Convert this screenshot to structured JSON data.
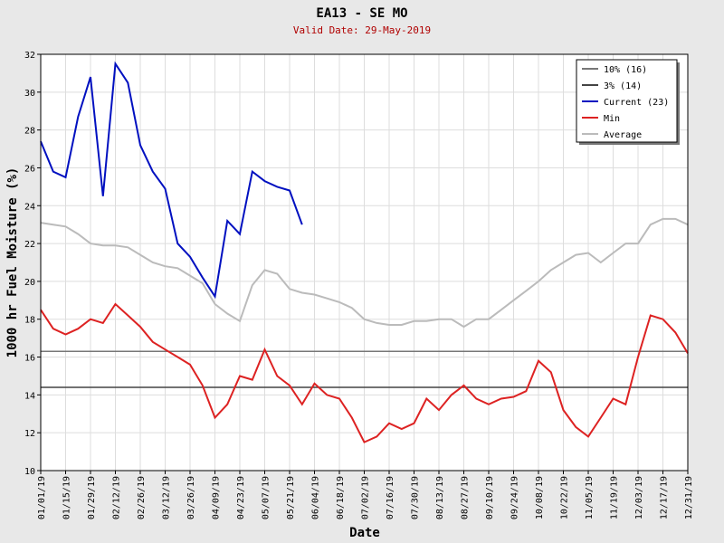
{
  "chart_data": {
    "type": "line",
    "title": "EA13 - SE MO",
    "subtitle": "Valid Date: 29-May-2019",
    "xlabel": "Date",
    "ylabel": "1000 hr Fuel Moisture (%)",
    "x": [
      "01/01/19",
      "01/08/19",
      "01/15/19",
      "01/22/19",
      "01/29/19",
      "02/05/19",
      "02/12/19",
      "02/19/19",
      "02/26/19",
      "03/05/19",
      "03/12/19",
      "03/19/19",
      "03/26/19",
      "04/02/19",
      "04/09/19",
      "04/16/19",
      "04/23/19",
      "04/30/19",
      "05/07/19",
      "05/14/19",
      "05/21/19",
      "05/28/19",
      "06/04/19",
      "06/11/19",
      "06/18/19",
      "06/25/19",
      "07/02/19",
      "07/09/19",
      "07/16/19",
      "07/23/19",
      "07/30/19",
      "08/06/19",
      "08/13/19",
      "08/20/19",
      "08/27/19",
      "09/03/19",
      "09/10/19",
      "09/17/19",
      "09/24/19",
      "10/01/19",
      "10/08/19",
      "10/15/19",
      "10/22/19",
      "10/29/19",
      "11/05/19",
      "11/12/19",
      "11/19/19",
      "11/26/19",
      "12/03/19",
      "12/10/19",
      "12/17/19",
      "12/24/19",
      "12/31/19"
    ],
    "reference_lines": [
      {
        "name": "10% (16)",
        "value": 16.3,
        "color": "#777777"
      },
      {
        "name": "3% (14)",
        "value": 14.4,
        "color": "#444444"
      }
    ],
    "series": [
      {
        "name": "Current (23)",
        "color": "#0010c0",
        "values": [
          27.4,
          25.8,
          25.5,
          28.7,
          30.8,
          24.5,
          31.5,
          30.5,
          27.2,
          25.8,
          24.9,
          22.0,
          21.3,
          20.2,
          19.2,
          23.2,
          22.5,
          25.8,
          25.3,
          25.0,
          24.8,
          23.0,
          null,
          null,
          null,
          null,
          null,
          null,
          null,
          null,
          null,
          null,
          null,
          null,
          null,
          null,
          null,
          null,
          null,
          null,
          null,
          null,
          null,
          null,
          null,
          null,
          null,
          null,
          null,
          null,
          null,
          null,
          null
        ]
      },
      {
        "name": "Min",
        "color": "#dd2222",
        "values": [
          18.5,
          17.5,
          17.2,
          17.5,
          18.0,
          17.8,
          18.8,
          18.2,
          17.6,
          16.8,
          16.4,
          16.0,
          15.6,
          14.5,
          12.8,
          13.5,
          15.0,
          14.8,
          16.4,
          15.0,
          14.5,
          13.5,
          14.6,
          14.0,
          13.8,
          12.8,
          11.5,
          11.8,
          12.5,
          12.2,
          12.5,
          13.8,
          13.2,
          14.0,
          14.5,
          13.8,
          13.5,
          13.8,
          13.9,
          14.2,
          15.8,
          15.2,
          13.2,
          12.3,
          11.8,
          12.8,
          13.8,
          13.5,
          16.0,
          18.2,
          18.0,
          17.3,
          16.2
        ]
      },
      {
        "name": "Average",
        "color": "#bbbbbb",
        "values": [
          23.1,
          23.0,
          22.9,
          22.5,
          22.0,
          21.9,
          21.9,
          21.8,
          21.4,
          21.0,
          20.8,
          20.7,
          20.3,
          19.9,
          18.8,
          18.3,
          17.9,
          19.8,
          20.6,
          20.4,
          19.6,
          19.4,
          19.3,
          19.1,
          18.9,
          18.6,
          18.0,
          17.8,
          17.7,
          17.7,
          17.9,
          17.9,
          18.0,
          18.0,
          17.6,
          18.0,
          18.0,
          18.5,
          19.0,
          19.5,
          20.0,
          20.6,
          21.0,
          21.4,
          21.5,
          21.0,
          21.5,
          22.0,
          22.0,
          23.0,
          23.3,
          23.3,
          23.0
        ]
      }
    ],
    "xlim": [
      "01/01/19",
      "12/31/19"
    ],
    "xticks": [
      "01/01/19",
      "01/15/19",
      "01/29/19",
      "02/12/19",
      "02/26/19",
      "03/12/19",
      "03/26/19",
      "04/09/19",
      "04/23/19",
      "05/07/19",
      "05/21/19",
      "06/04/19",
      "06/18/19",
      "07/02/19",
      "07/16/19",
      "07/30/19",
      "08/13/19",
      "08/27/19",
      "09/10/19",
      "09/24/19",
      "10/08/19",
      "10/22/19",
      "11/05/19",
      "11/19/19",
      "12/03/19",
      "12/17/19",
      "12/31/19"
    ],
    "ylim": [
      10,
      32
    ],
    "yticks": [
      10,
      12,
      14,
      16,
      18,
      20,
      22,
      24,
      26,
      28,
      30,
      32
    ],
    "grid": true,
    "legend": "upper right"
  }
}
